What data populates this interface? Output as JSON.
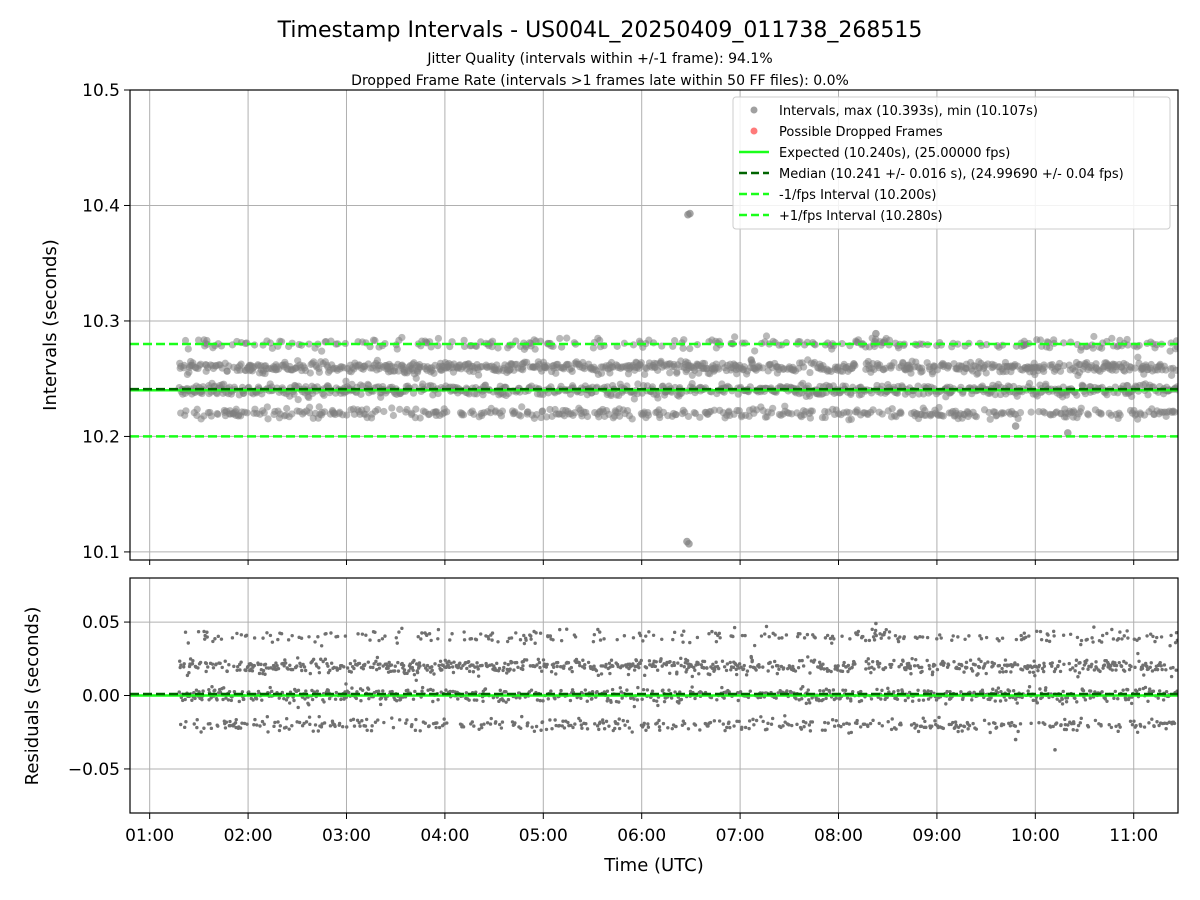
{
  "figure": {
    "title": "Timestamp Intervals - US004L_20250409_011738_268515",
    "subtitle_line1": "Jitter Quality (intervals within +/-1 frame): 94.1%",
    "subtitle_line2": "Dropped Frame Rate (intervals >1 frames late within 50 FF files): 0.0%"
  },
  "colors": {
    "points": "#808080",
    "dropped": "#ff4d4d",
    "expected": "#1aff1a",
    "median": "#006400",
    "bounds": "#1aff1a",
    "grid": "#b0b0b0"
  },
  "chart_data": [
    {
      "type": "scatter",
      "panel": "intervals",
      "ylabel": "Intervals (seconds)",
      "xlabel": "",
      "x_unit": "hours UTC",
      "xlim": [
        0.8,
        11.45
      ],
      "ylim": [
        10.093,
        10.5
      ],
      "yticks": [
        10.1,
        10.2,
        10.3,
        10.4,
        10.5
      ],
      "ytick_labels": [
        "10.1",
        "10.2",
        "10.3",
        "10.4",
        "10.5"
      ],
      "xticks": [
        1,
        2,
        3,
        4,
        5,
        6,
        7,
        8,
        9,
        10,
        11
      ],
      "xtick_labels": [
        "01:00",
        "02:00",
        "03:00",
        "04:00",
        "05:00",
        "06:00",
        "07:00",
        "08:00",
        "09:00",
        "10:00",
        "11:00"
      ],
      "grid": true,
      "legend_position": "top-right",
      "x_start": 1.3,
      "x_end": 11.45,
      "interval_levels": [
        10.22,
        10.24,
        10.26,
        10.28
      ],
      "level_weights": [
        0.2,
        0.33,
        0.35,
        0.12
      ],
      "spread": 0.004,
      "outliers": [
        {
          "x": 6.47,
          "y": 10.392
        },
        {
          "x": 6.49,
          "y": 10.393
        },
        {
          "x": 6.46,
          "y": 10.109
        },
        {
          "x": 6.48,
          "y": 10.107
        },
        {
          "x": 10.33,
          "y": 10.203
        },
        {
          "x": 9.8,
          "y": 10.209
        },
        {
          "x": 8.38,
          "y": 10.289
        }
      ],
      "lines": [
        {
          "name": "Expected (10.240s), (25.00000 fps)",
          "y": 10.24,
          "style": "solid",
          "color": "#1aff1a"
        },
        {
          "name": "Median (10.241 +/- 0.016 s), (24.99690 +/- 0.04 fps)",
          "y": 10.241,
          "style": "dashed",
          "color": "#006400"
        },
        {
          "name": "-1/fps Interval (10.200s)",
          "y": 10.2,
          "style": "dashed",
          "color": "#1aff1a"
        },
        {
          "name": "+1/fps Interval (10.280s)",
          "y": 10.28,
          "style": "dashed",
          "color": "#1aff1a"
        }
      ],
      "legend": [
        {
          "label": "Intervals, max (10.393s), min (10.107s)",
          "kind": "dot",
          "color": "#808080"
        },
        {
          "label": "Possible Dropped Frames",
          "kind": "dot",
          "color": "#ff4d4d"
        },
        {
          "label": "Expected (10.240s), (25.00000 fps)",
          "kind": "solid",
          "color": "#1aff1a"
        },
        {
          "label": "Median (10.241 +/- 0.016 s), (24.99690 +/- 0.04 fps)",
          "kind": "dashed",
          "color": "#006400"
        },
        {
          "label": "-1/fps Interval (10.200s)",
          "kind": "dashed",
          "color": "#1aff1a"
        },
        {
          "label": "+1/fps Interval (10.280s)",
          "kind": "dashed",
          "color": "#1aff1a"
        }
      ]
    },
    {
      "type": "scatter",
      "panel": "residuals",
      "ylabel": "Residuals (seconds)",
      "xlabel": "Time (UTC)",
      "xlim": [
        0.8,
        11.45
      ],
      "ylim": [
        -0.08,
        0.08
      ],
      "yticks": [
        0.05,
        0.0,
        -0.05
      ],
      "ytick_labels": [
        "0.05",
        "0.00",
        "−0.05"
      ],
      "xticks": [
        1,
        2,
        3,
        4,
        5,
        6,
        7,
        8,
        9,
        10,
        11
      ],
      "xtick_labels": [
        "01:00",
        "02:00",
        "03:00",
        "04:00",
        "05:00",
        "06:00",
        "07:00",
        "08:00",
        "09:00",
        "10:00",
        "11:00"
      ],
      "grid": true,
      "residual_levels": [
        -0.02,
        0.0,
        0.02,
        0.04
      ],
      "lines": [
        {
          "y": 0.0,
          "style": "solid",
          "color": "#1aff1a"
        },
        {
          "y": 0.001,
          "style": "dashed",
          "color": "#006400"
        }
      ],
      "outliers": [
        {
          "x": 10.2,
          "y": -0.037
        },
        {
          "x": 9.8,
          "y": -0.03
        },
        {
          "x": 8.38,
          "y": 0.049
        }
      ]
    }
  ]
}
